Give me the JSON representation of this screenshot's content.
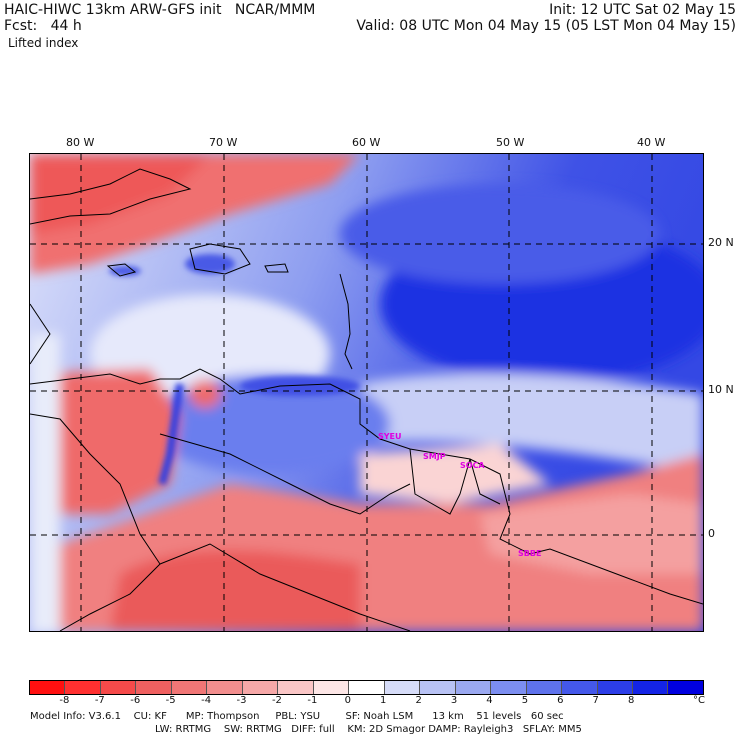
{
  "header": {
    "model_title": "HAIC-HIWC 13km ARW-GFS init   NCAR/MMM",
    "fcst": "Fcst:   44 h",
    "init": "Init: 12 UTC Sat 02 May 15",
    "valid": "Valid: 08 UTC Mon 04 May 15 (05 LST Mon 04 May 15)",
    "field": "Lifted index"
  },
  "map": {
    "lon_labels": [
      "80 W",
      "70 W",
      "60 W",
      "50 W",
      "40 W"
    ],
    "lat_labels": [
      "20 N",
      "10 N",
      "0"
    ],
    "stations": [
      "SYEU",
      "SMJP",
      "SOCA",
      "SBBE"
    ]
  },
  "colorbar": {
    "unit": "°C",
    "ticks": [
      "-8",
      "-7",
      "-6",
      "-5",
      "-4",
      "-3",
      "-2",
      "-1",
      "0",
      "1",
      "2",
      "3",
      "4",
      "5",
      "6",
      "7",
      "8"
    ],
    "colors": [
      "#ff1010",
      "#ff3030",
      "#f54a4a",
      "#ef6060",
      "#f07676",
      "#f28e8e",
      "#f6a8a8",
      "#fac6c6",
      "#fde6e6",
      "#ffffff",
      "#d6dcf8",
      "#b8c2f4",
      "#9aa8f0",
      "#7c8ef0",
      "#5e72ec",
      "#4458ea",
      "#2c3ee8",
      "#1424e6",
      "#0000e0"
    ]
  },
  "model_info": {
    "line1": "Model Info: V3.6.1    CU: KF      MP: Thompson     PBL: YSU        SF: Noah LSM      13 km    51 levels   60 sec",
    "line2": "LW: RRTMG    SW: RRTMG   DIFF: full    KM: 2D Smagor DAMP: Rayleigh3   SFLAY: MM5"
  }
}
